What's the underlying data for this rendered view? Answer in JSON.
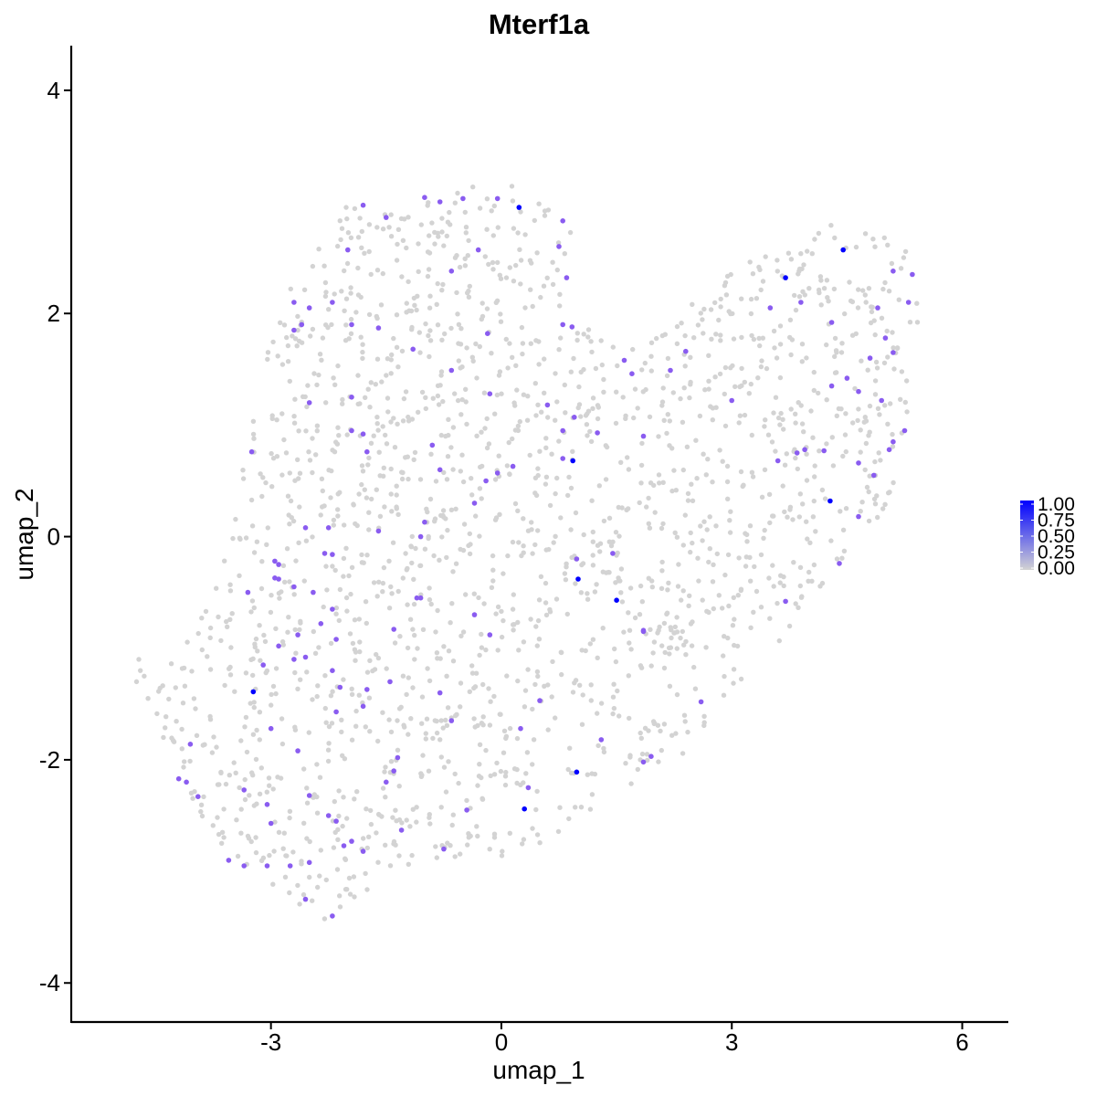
{
  "chart_data": {
    "type": "scatter",
    "title": "Mterf1a",
    "xlabel": "umap_1",
    "ylabel": "umap_2",
    "xlim": [
      -5.6,
      6.6
    ],
    "ylim": [
      -4.35,
      4.4
    ],
    "x_ticks": [
      -3,
      0,
      3,
      6
    ],
    "x_tick_labels": [
      "-3",
      "0",
      "3",
      "6"
    ],
    "y_ticks": [
      -4,
      -2,
      0,
      2,
      4
    ],
    "y_tick_labels": [
      "-4",
      "-2",
      "0",
      "2",
      "4"
    ],
    "grid": false,
    "legend": {
      "placement": "right",
      "type": "colorbar",
      "ticks": [
        1.0,
        0.75,
        0.5,
        0.25,
        0.0
      ],
      "tick_labels": [
        "1.00",
        "0.75",
        "0.50",
        "0.25",
        "0.00"
      ]
    },
    "colors": {
      "low": "#d3d3d3",
      "high": "#0000ff",
      "mid_expr": "#8a5cf0"
    },
    "background_cells": {
      "description_count": 1900,
      "value": 0.0
    },
    "expressing_cells": [
      {
        "x": 0.23,
        "y": 2.95,
        "v": 1.0
      },
      {
        "x": 4.45,
        "y": 2.57,
        "v": 1.0
      },
      {
        "x": 3.7,
        "y": 2.32,
        "v": 1.0
      },
      {
        "x": 0.93,
        "y": 0.68,
        "v": 1.0
      },
      {
        "x": 4.28,
        "y": 0.32,
        "v": 1.0
      },
      {
        "x": 1.0,
        "y": -0.38,
        "v": 1.0
      },
      {
        "x": 1.5,
        "y": -0.57,
        "v": 1.0
      },
      {
        "x": -3.23,
        "y": -1.39,
        "v": 1.0
      },
      {
        "x": 0.98,
        "y": -2.11,
        "v": 1.0
      },
      {
        "x": 0.3,
        "y": -2.44,
        "v": 1.0
      },
      {
        "x": -1.8,
        "y": 2.97,
        "v": 0.6
      },
      {
        "x": -1.5,
        "y": 2.86,
        "v": 0.6
      },
      {
        "x": -1.0,
        "y": 3.04,
        "v": 0.6
      },
      {
        "x": -0.8,
        "y": 3.0,
        "v": 0.6
      },
      {
        "x": -0.5,
        "y": 3.03,
        "v": 0.6
      },
      {
        "x": -0.05,
        "y": 3.03,
        "v": 0.6
      },
      {
        "x": -2.0,
        "y": 2.57,
        "v": 0.6
      },
      {
        "x": 0.8,
        "y": 2.83,
        "v": 0.6
      },
      {
        "x": 0.75,
        "y": 2.6,
        "v": 0.6
      },
      {
        "x": -0.3,
        "y": 2.57,
        "v": 0.6
      },
      {
        "x": -0.65,
        "y": 2.38,
        "v": 0.6
      },
      {
        "x": 0.85,
        "y": 2.32,
        "v": 0.6
      },
      {
        "x": -2.7,
        "y": 2.1,
        "v": 0.6
      },
      {
        "x": -2.5,
        "y": 2.05,
        "v": 0.6
      },
      {
        "x": -2.2,
        "y": 2.1,
        "v": 0.6
      },
      {
        "x": -2.6,
        "y": 1.9,
        "v": 0.6
      },
      {
        "x": -2.7,
        "y": 1.85,
        "v": 0.6
      },
      {
        "x": -1.95,
        "y": 1.9,
        "v": 0.6
      },
      {
        "x": -1.6,
        "y": 1.87,
        "v": 0.6
      },
      {
        "x": -1.15,
        "y": 1.68,
        "v": 0.6
      },
      {
        "x": -0.18,
        "y": 1.82,
        "v": 0.6
      },
      {
        "x": 0.8,
        "y": 1.9,
        "v": 0.6
      },
      {
        "x": 0.92,
        "y": 1.88,
        "v": 0.6
      },
      {
        "x": 1.6,
        "y": 1.58,
        "v": 0.6
      },
      {
        "x": 1.7,
        "y": 1.46,
        "v": 0.6
      },
      {
        "x": 2.2,
        "y": 1.49,
        "v": 0.6
      },
      {
        "x": 2.4,
        "y": 1.66,
        "v": 0.6
      },
      {
        "x": 3.0,
        "y": 1.22,
        "v": 0.6
      },
      {
        "x": 3.5,
        "y": 2.05,
        "v": 0.6
      },
      {
        "x": 3.9,
        "y": 2.1,
        "v": 0.6
      },
      {
        "x": 4.3,
        "y": 1.92,
        "v": 0.6
      },
      {
        "x": 4.5,
        "y": 1.42,
        "v": 0.6
      },
      {
        "x": 4.9,
        "y": 2.05,
        "v": 0.6
      },
      {
        "x": 5.1,
        "y": 2.38,
        "v": 0.6
      },
      {
        "x": 5.35,
        "y": 2.35,
        "v": 0.6
      },
      {
        "x": 5.3,
        "y": 2.1,
        "v": 0.6
      },
      {
        "x": 5.0,
        "y": 1.78,
        "v": 0.6
      },
      {
        "x": 5.1,
        "y": 1.65,
        "v": 0.6
      },
      {
        "x": 4.8,
        "y": 1.6,
        "v": 0.6
      },
      {
        "x": 4.3,
        "y": 1.35,
        "v": 0.6
      },
      {
        "x": 4.65,
        "y": 1.3,
        "v": 0.6
      },
      {
        "x": 4.95,
        "y": 1.22,
        "v": 0.6
      },
      {
        "x": 5.25,
        "y": 0.95,
        "v": 0.6
      },
      {
        "x": 5.1,
        "y": 0.85,
        "v": 0.6
      },
      {
        "x": 5.05,
        "y": 0.78,
        "v": 0.6
      },
      {
        "x": 3.95,
        "y": 0.78,
        "v": 0.6
      },
      {
        "x": 3.85,
        "y": 0.75,
        "v": 0.6
      },
      {
        "x": 4.2,
        "y": 0.77,
        "v": 0.6
      },
      {
        "x": 4.65,
        "y": 0.66,
        "v": 0.6
      },
      {
        "x": 4.85,
        "y": 0.55,
        "v": 0.6
      },
      {
        "x": 3.6,
        "y": 0.68,
        "v": 0.6
      },
      {
        "x": 4.65,
        "y": 0.18,
        "v": 0.6
      },
      {
        "x": 4.4,
        "y": -0.24,
        "v": 0.6
      },
      {
        "x": 3.7,
        "y": -0.58,
        "v": 0.6
      },
      {
        "x": 1.85,
        "y": -0.84,
        "v": 0.6
      },
      {
        "x": 1.85,
        "y": 0.9,
        "v": 0.6
      },
      {
        "x": 1.25,
        "y": 0.93,
        "v": 0.6
      },
      {
        "x": 0.95,
        "y": 1.07,
        "v": 0.6
      },
      {
        "x": 0.8,
        "y": 0.95,
        "v": 0.6
      },
      {
        "x": 0.6,
        "y": 1.18,
        "v": 0.6
      },
      {
        "x": 0.8,
        "y": 0.7,
        "v": 0.6
      },
      {
        "x": 0.15,
        "y": 0.63,
        "v": 0.6
      },
      {
        "x": -0.05,
        "y": 0.57,
        "v": 0.6
      },
      {
        "x": -0.2,
        "y": 0.5,
        "v": 0.6
      },
      {
        "x": -0.8,
        "y": 0.6,
        "v": 0.6
      },
      {
        "x": -0.9,
        "y": 0.82,
        "v": 0.6
      },
      {
        "x": -0.65,
        "y": 1.49,
        "v": 0.6
      },
      {
        "x": -0.15,
        "y": 1.28,
        "v": 0.6
      },
      {
        "x": -1.95,
        "y": 1.25,
        "v": 0.6
      },
      {
        "x": -2.5,
        "y": 1.2,
        "v": 0.6
      },
      {
        "x": -1.95,
        "y": 0.95,
        "v": 0.6
      },
      {
        "x": -1.8,
        "y": 0.92,
        "v": 0.6
      },
      {
        "x": -1.75,
        "y": 0.76,
        "v": 0.6
      },
      {
        "x": -3.25,
        "y": 0.76,
        "v": 0.6
      },
      {
        "x": -2.55,
        "y": 0.08,
        "v": 0.6
      },
      {
        "x": -2.25,
        "y": 0.08,
        "v": 0.6
      },
      {
        "x": -1.6,
        "y": 0.05,
        "v": 0.6
      },
      {
        "x": -1.0,
        "y": 0.13,
        "v": 0.6
      },
      {
        "x": -1.05,
        "y": 0.0,
        "v": 0.6
      },
      {
        "x": -0.35,
        "y": 0.3,
        "v": 0.6
      },
      {
        "x": -2.3,
        "y": -0.15,
        "v": 0.6
      },
      {
        "x": -2.2,
        "y": -0.16,
        "v": 0.6
      },
      {
        "x": -2.95,
        "y": -0.22,
        "v": 0.6
      },
      {
        "x": -2.9,
        "y": -0.25,
        "v": 0.6
      },
      {
        "x": -2.95,
        "y": -0.37,
        "v": 0.6
      },
      {
        "x": -2.9,
        "y": -0.38,
        "v": 0.6
      },
      {
        "x": -3.3,
        "y": -0.5,
        "v": 0.6
      },
      {
        "x": -2.7,
        "y": -0.45,
        "v": 0.6
      },
      {
        "x": -2.45,
        "y": -0.5,
        "v": 0.6
      },
      {
        "x": -2.2,
        "y": -0.65,
        "v": 0.6
      },
      {
        "x": -1.05,
        "y": -0.55,
        "v": 0.6
      },
      {
        "x": -0.35,
        "y": -0.7,
        "v": 0.6
      },
      {
        "x": 0.98,
        "y": -0.2,
        "v": 0.6
      },
      {
        "x": 1.45,
        "y": -0.15,
        "v": 0.6
      },
      {
        "x": -2.35,
        "y": -0.78,
        "v": 0.6
      },
      {
        "x": -2.15,
        "y": -0.92,
        "v": 0.6
      },
      {
        "x": -2.65,
        "y": -0.88,
        "v": 0.6
      },
      {
        "x": -2.9,
        "y": -0.98,
        "v": 0.6
      },
      {
        "x": -2.7,
        "y": -1.1,
        "v": 0.6
      },
      {
        "x": -2.55,
        "y": -1.08,
        "v": 0.6
      },
      {
        "x": -3.1,
        "y": -1.15,
        "v": 0.6
      },
      {
        "x": -2.2,
        "y": -1.2,
        "v": 0.6
      },
      {
        "x": -2.1,
        "y": -1.35,
        "v": 0.6
      },
      {
        "x": -1.75,
        "y": -1.37,
        "v": 0.6
      },
      {
        "x": -1.45,
        "y": -1.3,
        "v": 0.6
      },
      {
        "x": -0.8,
        "y": -1.4,
        "v": 0.6
      },
      {
        "x": -0.15,
        "y": -0.88,
        "v": 0.6
      },
      {
        "x": 1.85,
        "y": -0.85,
        "v": 0.6
      },
      {
        "x": -1.8,
        "y": -1.52,
        "v": 0.6
      },
      {
        "x": -2.15,
        "y": -1.57,
        "v": 0.6
      },
      {
        "x": -3.0,
        "y": -1.72,
        "v": 0.6
      },
      {
        "x": -0.65,
        "y": -1.65,
        "v": 0.6
      },
      {
        "x": 0.25,
        "y": -1.72,
        "v": 0.6
      },
      {
        "x": 0.5,
        "y": -1.47,
        "v": 0.6
      },
      {
        "x": 1.3,
        "y": -1.82,
        "v": 0.6
      },
      {
        "x": 1.95,
        "y": -1.97,
        "v": 0.6
      },
      {
        "x": 1.85,
        "y": -2.02,
        "v": 0.6
      },
      {
        "x": 2.6,
        "y": -1.48,
        "v": 0.6
      },
      {
        "x": -4.05,
        "y": -1.86,
        "v": 0.6
      },
      {
        "x": -2.65,
        "y": -1.92,
        "v": 0.6
      },
      {
        "x": -1.35,
        "y": -1.98,
        "v": 0.6
      },
      {
        "x": -1.4,
        "y": -2.1,
        "v": 0.6
      },
      {
        "x": -1.5,
        "y": -2.2,
        "v": 0.6
      },
      {
        "x": -4.2,
        "y": -2.17,
        "v": 0.6
      },
      {
        "x": -4.1,
        "y": -2.2,
        "v": 0.6
      },
      {
        "x": -3.95,
        "y": -2.33,
        "v": 0.6
      },
      {
        "x": -3.35,
        "y": -2.27,
        "v": 0.6
      },
      {
        "x": -3.05,
        "y": -2.4,
        "v": 0.6
      },
      {
        "x": -2.5,
        "y": -2.32,
        "v": 0.6
      },
      {
        "x": -2.25,
        "y": -2.5,
        "v": 0.6
      },
      {
        "x": -2.15,
        "y": -2.55,
        "v": 0.6
      },
      {
        "x": -0.45,
        "y": -2.45,
        "v": 0.6
      },
      {
        "x": 0.35,
        "y": -2.25,
        "v": 0.6
      },
      {
        "x": -3.0,
        "y": -2.57,
        "v": 0.6
      },
      {
        "x": -1.3,
        "y": -2.63,
        "v": 0.6
      },
      {
        "x": -2.05,
        "y": -2.77,
        "v": 0.6
      },
      {
        "x": -1.95,
        "y": -2.73,
        "v": 0.6
      },
      {
        "x": -1.8,
        "y": -2.82,
        "v": 0.6
      },
      {
        "x": -0.75,
        "y": -2.8,
        "v": 0.6
      },
      {
        "x": -3.55,
        "y": -2.9,
        "v": 0.6
      },
      {
        "x": -3.35,
        "y": -2.95,
        "v": 0.6
      },
      {
        "x": -3.05,
        "y": -2.95,
        "v": 0.6
      },
      {
        "x": -2.75,
        "y": -2.95,
        "v": 0.6
      },
      {
        "x": -2.5,
        "y": -2.92,
        "v": 0.6
      },
      {
        "x": -2.55,
        "y": -3.25,
        "v": 0.6
      },
      {
        "x": -2.2,
        "y": -3.4,
        "v": 0.6
      },
      {
        "x": -1.4,
        "y": -0.83,
        "v": 0.6
      },
      {
        "x": -1.1,
        "y": -0.55,
        "v": 0.6
      }
    ]
  }
}
